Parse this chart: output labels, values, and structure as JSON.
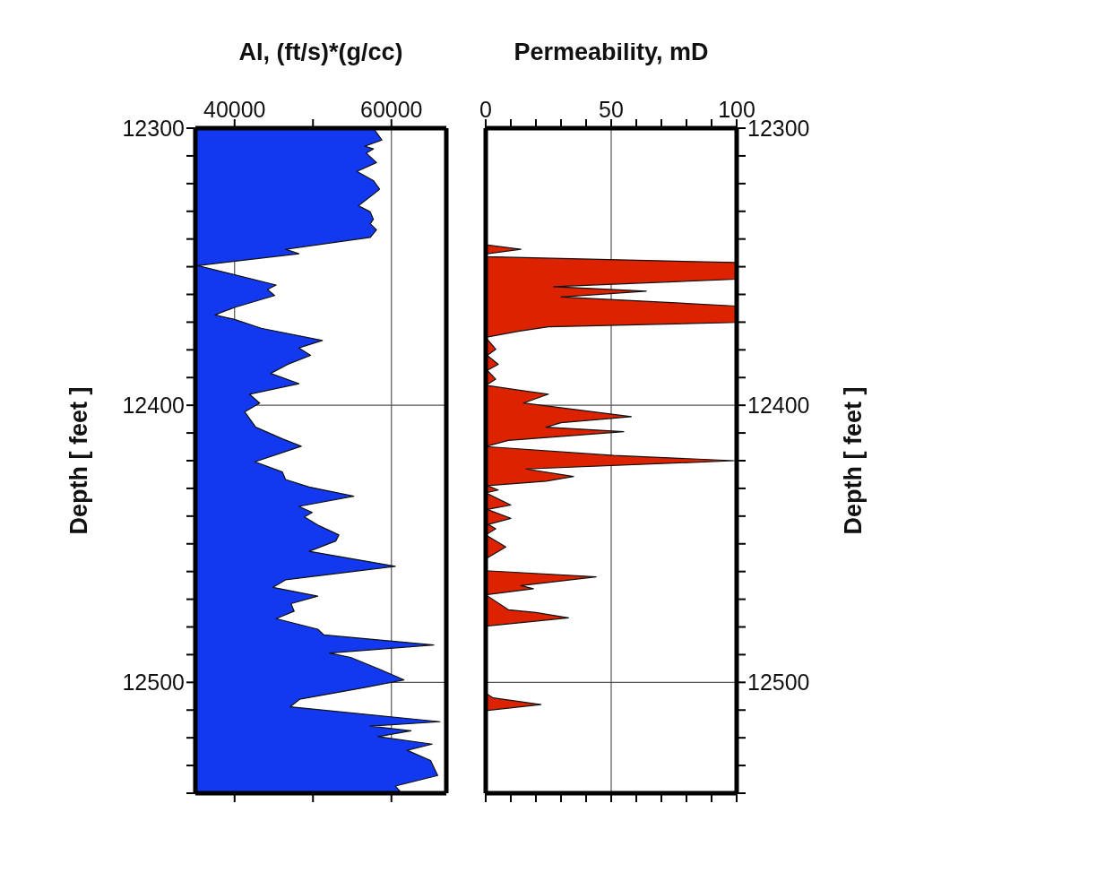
{
  "chart_data": [
    {
      "type": "area",
      "orientation": "horizontal",
      "xlabel": "AI, (ft/s)*(g/cc)",
      "ylabel": "Depth [ feet ]",
      "color": "#1238f0",
      "grid": true,
      "xlim": [
        35000,
        67000
      ],
      "xticks": [
        40000,
        {
          "value": 50000,
          "label": null
        },
        60000
      ],
      "ylim": [
        12540,
        12300
      ],
      "yticks": [
        12300,
        {
          "value": 12310,
          "label": null
        },
        {
          "value": 12320,
          "label": null
        },
        {
          "value": 12330,
          "label": null
        },
        {
          "value": 12340,
          "label": null
        },
        {
          "value": 12350,
          "label": null
        },
        {
          "value": 12360,
          "label": null
        },
        {
          "value": 12370,
          "label": null
        },
        {
          "value": 12380,
          "label": null
        },
        {
          "value": 12390,
          "label": null
        },
        12400,
        {
          "value": 12410,
          "label": null
        },
        {
          "value": 12420,
          "label": null
        },
        {
          "value": 12430,
          "label": null
        },
        {
          "value": 12440,
          "label": null
        },
        {
          "value": 12450,
          "label": null
        },
        {
          "value": 12460,
          "label": null
        },
        {
          "value": 12470,
          "label": null
        },
        {
          "value": 12480,
          "label": null
        },
        {
          "value": 12490,
          "label": null
        },
        12500,
        {
          "value": 12510,
          "label": null
        },
        {
          "value": 12520,
          "label": null
        },
        {
          "value": 12530,
          "label": null
        },
        {
          "value": 12540,
          "label": null
        }
      ],
      "x": [
        12300,
        12304.3,
        12306.5,
        12307.5,
        12309,
        12312.4,
        12315.6,
        12318.9,
        12322,
        12324.3,
        12328,
        12330.2,
        12332.9,
        12334.5,
        12336.7,
        12339.4,
        12343.7,
        12345.3,
        12349.6,
        12356.6,
        12358.2,
        12360.4,
        12364.7,
        12367.4,
        12369,
        12372.2,
        12376.6,
        12379.3,
        12382,
        12385.2,
        12388.5,
        12392.2,
        12396,
        12399.2,
        12402.4,
        12407.9,
        12412.1,
        12414.8,
        12420.4,
        12424.1,
        12426.8,
        12429.5,
        12432.8,
        12436.5,
        12438.7,
        12440.3,
        12443.5,
        12446.8,
        12449,
        12452.7,
        12458.1,
        12463,
        12465.7,
        12468.9,
        12471.6,
        12474.3,
        12477,
        12480.8,
        12482.9,
        12486.5,
        12489.4,
        12491,
        12495.3,
        12499.1,
        12501.8,
        12506.1,
        12508.8,
        12514.2,
        12515.8,
        12517.5,
        12519.6,
        12522.3,
        12524.5,
        12528.2,
        12533.6,
        12537.4,
        12540
      ],
      "values": [
        57700,
        58800,
        56600,
        57700,
        56800,
        58100,
        55600,
        57700,
        58500,
        57500,
        55800,
        57300,
        57700,
        57300,
        58100,
        57300,
        46500,
        48200,
        35300,
        45300,
        44200,
        45100,
        40000,
        37500,
        40000,
        43400,
        51200,
        48200,
        49700,
        46800,
        44600,
        48200,
        41900,
        43200,
        41300,
        42700,
        46100,
        48500,
        42600,
        46100,
        46500,
        49500,
        55200,
        48200,
        49900,
        48900,
        50800,
        53300,
        52900,
        49500,
        60500,
        46500,
        44900,
        50600,
        47200,
        47600,
        45300,
        50600,
        51400,
        65400,
        52100,
        54800,
        58500,
        61600,
        56700,
        48300,
        47100,
        66200,
        57300,
        62500,
        58300,
        65200,
        62000,
        65000,
        65900,
        60500,
        61300
      ]
    },
    {
      "type": "area",
      "orientation": "horizontal",
      "xlabel": "Permeability, mD",
      "ylabel": "Depth [ feet ]",
      "color": "#dd2200",
      "grid": true,
      "xlim": [
        0,
        100
      ],
      "xticks": [
        0,
        {
          "value": 10,
          "label": null
        },
        {
          "value": 20,
          "label": null
        },
        {
          "value": 30,
          "label": null
        },
        {
          "value": 40,
          "label": null
        },
        50,
        {
          "value": 60,
          "label": null
        },
        {
          "value": 70,
          "label": null
        },
        {
          "value": 80,
          "label": null
        },
        {
          "value": 90,
          "label": null
        },
        100
      ],
      "ylim": [
        12540,
        12300
      ],
      "yticks": [
        12300,
        {
          "value": 12310,
          "label": null
        },
        {
          "value": 12320,
          "label": null
        },
        {
          "value": 12330,
          "label": null
        },
        {
          "value": 12340,
          "label": null
        },
        {
          "value": 12350,
          "label": null
        },
        {
          "value": 12360,
          "label": null
        },
        {
          "value": 12370,
          "label": null
        },
        {
          "value": 12380,
          "label": null
        },
        {
          "value": 12390,
          "label": null
        },
        12400,
        {
          "value": 12410,
          "label": null
        },
        {
          "value": 12420,
          "label": null
        },
        {
          "value": 12430,
          "label": null
        },
        {
          "value": 12440,
          "label": null
        },
        {
          "value": 12450,
          "label": null
        },
        {
          "value": 12460,
          "label": null
        },
        {
          "value": 12470,
          "label": null
        },
        {
          "value": 12480,
          "label": null
        },
        {
          "value": 12490,
          "label": null
        },
        12500,
        {
          "value": 12510,
          "label": null
        },
        {
          "value": 12520,
          "label": null
        },
        {
          "value": 12530,
          "label": null
        },
        {
          "value": 12540,
          "label": null
        }
      ],
      "x": [
        12300,
        12342.1,
        12343.7,
        12345.3,
        12346.4,
        12348.5,
        12354.5,
        12357.2,
        12358.8,
        12360.9,
        12364.2,
        12370.1,
        12371.7,
        12373.3,
        12375.5,
        12379.8,
        12382,
        12385.2,
        12387.4,
        12390.6,
        12392.8,
        12394.9,
        12396,
        12399.2,
        12404.1,
        12406.3,
        12407.9,
        12409.5,
        12412.7,
        12414.9,
        12418.1,
        12420,
        12423,
        12425.7,
        12427.4,
        12429,
        12430.6,
        12431.6,
        12436,
        12437.6,
        12440.8,
        12443,
        12444.6,
        12446.8,
        12451.1,
        12455.4,
        12459.7,
        12461.9,
        12465.1,
        12466.2,
        12468.4,
        12473.8,
        12474.8,
        12476.7,
        12479.7,
        12503.9,
        12505.6,
        12508,
        12510.2,
        12540
      ],
      "values": [
        0,
        0,
        14,
        0.6,
        0,
        100,
        100,
        27,
        64,
        30,
        100,
        100,
        25,
        13,
        0,
        4,
        0.6,
        5,
        0.6,
        4,
        0,
        16,
        25,
        15,
        58,
        30,
        24,
        55,
        9,
        0,
        51,
        99,
        16,
        35,
        24,
        0.6,
        5,
        0,
        10,
        0.6,
        10,
        1,
        4,
        0,
        8,
        0,
        0,
        44,
        14,
        19,
        0,
        9,
        20,
        33,
        0,
        0,
        3,
        22,
        0,
        0
      ]
    }
  ]
}
